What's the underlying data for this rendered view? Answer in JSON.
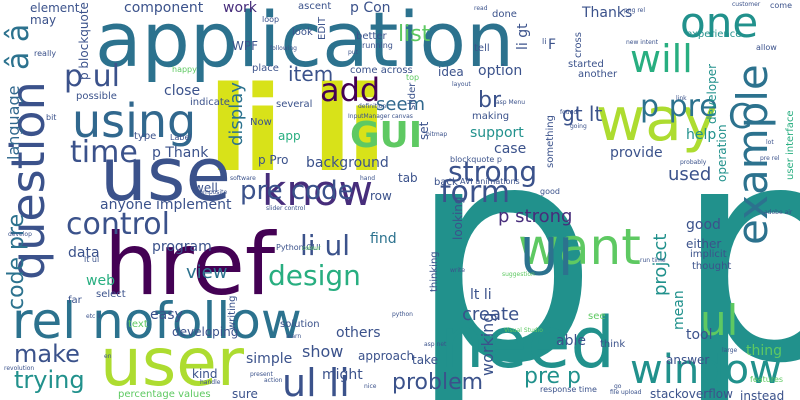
{
  "palette": {
    "dark_purple": "#440154",
    "indigo": "#472d7b",
    "slate_blue": "#3b528b",
    "steel_blue": "#2c728e",
    "teal": "#21918c",
    "sea_green": "#28ae80",
    "green": "#5ec962",
    "lime": "#addc30",
    "yellow": "#fde725"
  },
  "words": [
    {
      "text": "p p",
      "color": "#21918c"
    },
    {
      "text": "application",
      "color": "#2c728e"
    },
    {
      "text": "li li",
      "color": "#d8e219"
    },
    {
      "text": "use",
      "color": "#3b528b"
    },
    {
      "text": "href",
      "color": "#440154"
    },
    {
      "text": "need",
      "color": "#21918c"
    },
    {
      "text": "user",
      "color": "#addc30"
    },
    {
      "text": "rel nofollow",
      "color": "#2c728e"
    },
    {
      "text": "way",
      "color": "#addc30"
    },
    {
      "text": "want",
      "color": "#5ec962"
    },
    {
      "text": "question",
      "color": "#3b528b"
    },
    {
      "text": "example",
      "color": "#2c728e"
    },
    {
      "text": "using",
      "color": "#31688e"
    },
    {
      "text": "UI",
      "color": "#2c728e"
    },
    {
      "text": "know",
      "color": "#472d7b"
    },
    {
      "text": "window",
      "color": "#21918c"
    },
    {
      "text": "ul li",
      "color": "#3b528b"
    },
    {
      "text": "one",
      "color": "#21918c"
    },
    {
      "text": "will",
      "color": "#28ae80"
    },
    {
      "text": "GUI",
      "color": "#5ec962"
    },
    {
      "text": "p pre",
      "color": "#2c728e"
    },
    {
      "text": "form",
      "color": "#3b528b"
    },
    {
      "text": "control",
      "color": "#3b528b"
    },
    {
      "text": "add",
      "color": "#440154"
    },
    {
      "text": "â â",
      "color": "#2c728e"
    },
    {
      "text": "p ul",
      "color": "#3b528b"
    },
    {
      "text": "time",
      "color": "#3b528b"
    },
    {
      "text": "design",
      "color": "#28ae80"
    },
    {
      "text": "pre code",
      "color": "#3b528b"
    },
    {
      "text": "strong",
      "color": "#3b528b"
    },
    {
      "text": "li ul",
      "color": "#3b528b"
    },
    {
      "text": "code pre",
      "color": "#2c728e"
    },
    {
      "text": "language",
      "color": "#31688e"
    },
    {
      "text": "make",
      "color": "#3b528b"
    },
    {
      "text": "trying",
      "color": "#21918c"
    },
    {
      "text": "problem",
      "color": "#3b528b"
    },
    {
      "text": "C",
      "color": "#2c728e"
    },
    {
      "text": "ul",
      "color": "#5ec962"
    },
    {
      "text": "pre p",
      "color": "#21918c"
    },
    {
      "text": "p strong",
      "color": "#472d7b"
    },
    {
      "text": "item",
      "color": "#3b528b"
    },
    {
      "text": "seem",
      "color": "#31688e"
    },
    {
      "text": "display",
      "color": "#2c728e"
    },
    {
      "text": "project",
      "color": "#21918c"
    },
    {
      "text": "view",
      "color": "#2c728e"
    },
    {
      "text": "create",
      "color": "#3b528b"
    },
    {
      "text": "used",
      "color": "#3b528b"
    },
    {
      "text": "show",
      "color": "#3b528b"
    },
    {
      "text": "working",
      "color": "#3b528b"
    },
    {
      "text": "might",
      "color": "#3b528b"
    },
    {
      "text": "list",
      "color": "#5ec962"
    },
    {
      "text": "gt lt",
      "color": "#3b528b"
    },
    {
      "text": "br",
      "color": "#3b528b"
    },
    {
      "text": "option",
      "color": "#3b528b"
    },
    {
      "text": "p Thank",
      "color": "#3b528b"
    },
    {
      "text": "component",
      "color": "#3b528b"
    },
    {
      "text": "work",
      "color": "#472d7b"
    },
    {
      "text": "p Con",
      "color": "#3b528b"
    },
    {
      "text": "Thanks",
      "color": "#3b528b"
    },
    {
      "text": "help",
      "color": "#21918c"
    },
    {
      "text": "find",
      "color": "#2c728e"
    },
    {
      "text": "data",
      "color": "#3b528b"
    },
    {
      "text": "web",
      "color": "#28ae80"
    },
    {
      "text": "good",
      "color": "#3b528b"
    },
    {
      "text": "mean",
      "color": "#21918c"
    },
    {
      "text": "easy",
      "color": "#3b528b"
    },
    {
      "text": "case",
      "color": "#3b528b"
    },
    {
      "text": "support",
      "color": "#21918c"
    },
    {
      "text": "background",
      "color": "#3b528b"
    },
    {
      "text": "program",
      "color": "#3b528b"
    },
    {
      "text": "provide",
      "color": "#3b528b"
    },
    {
      "text": "simple",
      "color": "#3b528b"
    },
    {
      "text": "able",
      "color": "#3b528b"
    },
    {
      "text": "lt li",
      "color": "#3b528b"
    },
    {
      "text": "others",
      "color": "#3b528b"
    },
    {
      "text": "tool",
      "color": "#3b528b"
    },
    {
      "text": "thing",
      "color": "#5ec962"
    },
    {
      "text": "anyone",
      "color": "#3b528b"
    },
    {
      "text": "implement",
      "color": "#3b528b"
    },
    {
      "text": "element",
      "color": "#3b528b"
    },
    {
      "text": "may",
      "color": "#3b528b"
    },
    {
      "text": "WPF",
      "color": "#3b528b"
    },
    {
      "text": "close",
      "color": "#3b528b"
    },
    {
      "text": "app",
      "color": "#28ae80"
    },
    {
      "text": "p Pro",
      "color": "#3b528b"
    },
    {
      "text": "well",
      "color": "#3b528b"
    },
    {
      "text": "idea",
      "color": "#3b528b"
    },
    {
      "text": "tab",
      "color": "#3b528b"
    },
    {
      "text": "developing",
      "color": "#3b528b"
    },
    {
      "text": "either",
      "color": "#3b528b"
    },
    {
      "text": "answer",
      "color": "#3b528b"
    },
    {
      "text": "approach",
      "color": "#3b528b"
    },
    {
      "text": "take",
      "color": "#3b528b"
    },
    {
      "text": "sure",
      "color": "#3b528b"
    },
    {
      "text": "kind",
      "color": "#3b528b"
    },
    {
      "text": "instead",
      "color": "#3b528b"
    },
    {
      "text": "stackoverflow",
      "color": "#3b528b"
    },
    {
      "text": "percentage values",
      "color": "#5ec962"
    },
    {
      "text": "developer",
      "color": "#21918c"
    },
    {
      "text": "operation",
      "color": "#21918c"
    },
    {
      "text": "experience",
      "color": "#21918c"
    },
    {
      "text": "solution",
      "color": "#3b528b"
    },
    {
      "text": "select",
      "color": "#3b528b"
    },
    {
      "text": "possible",
      "color": "#3b528b"
    },
    {
      "text": "place",
      "color": "#3b528b"
    },
    {
      "text": "indicate",
      "color": "#3b528b"
    },
    {
      "text": "several",
      "color": "#3b528b"
    },
    {
      "text": "come across",
      "color": "#3b528b"
    },
    {
      "text": "making",
      "color": "#3b528b"
    },
    {
      "text": "thinking",
      "color": "#3b528b"
    },
    {
      "text": "looking",
      "color": "#3b528b"
    },
    {
      "text": "something",
      "color": "#3b528b"
    },
    {
      "text": "another",
      "color": "#3b528b"
    },
    {
      "text": "started",
      "color": "#3b528b"
    },
    {
      "text": "cross",
      "color": "#3b528b"
    },
    {
      "text": "better",
      "color": "#3b528b"
    },
    {
      "text": "running",
      "color": "#3b528b"
    },
    {
      "text": "tell",
      "color": "#3b528b"
    },
    {
      "text": "loop",
      "color": "#3b528b"
    },
    {
      "text": "ascent",
      "color": "#3b528b"
    },
    {
      "text": "EDIT",
      "color": "#3b528b"
    },
    {
      "text": "done",
      "color": "#3b528b"
    },
    {
      "text": "li gt",
      "color": "#3b528b"
    },
    {
      "text": "F",
      "color": "#3b528b"
    },
    {
      "text": "p blockquote",
      "color": "#3b528b"
    },
    {
      "text": "far",
      "color": "#3b528b"
    },
    {
      "text": "think",
      "color": "#3b528b"
    },
    {
      "text": "look",
      "color": "#3b528b"
    },
    {
      "text": "writing",
      "color": "#3b528b"
    },
    {
      "text": "type",
      "color": "#3b528b"
    },
    {
      "text": "Now",
      "color": "#3b528b"
    },
    {
      "text": "slider",
      "color": "#3b528b"
    },
    {
      "text": "set",
      "color": "#3b528b"
    },
    {
      "text": "row",
      "color": "#3b528b"
    },
    {
      "text": "back",
      "color": "#3b528b"
    },
    {
      "text": "AVI animations",
      "color": "#3b528b"
    },
    {
      "text": "good",
      "color": "#3b528b"
    },
    {
      "text": "user interface",
      "color": "#28ae80"
    },
    {
      "text": "implicit",
      "color": "#3b528b"
    },
    {
      "text": "thought",
      "color": "#3b528b"
    },
    {
      "text": "Python GUI",
      "color": "#3b528b"
    },
    {
      "text": "text",
      "color": "#5ec962"
    },
    {
      "text": "see",
      "color": "#5ec962"
    },
    {
      "text": "come",
      "color": "#3b528b"
    },
    {
      "text": "allow",
      "color": "#3b528b"
    },
    {
      "text": "really",
      "color": "#3b528b"
    },
    {
      "text": "bit",
      "color": "#3b528b"
    },
    {
      "text": "happy",
      "color": "#5ec962"
    },
    {
      "text": "Label",
      "color": "#3b528b"
    },
    {
      "text": "blockquote p",
      "color": "#3b528b"
    },
    {
      "text": "InputManager canvas",
      "color": "#3b528b"
    },
    {
      "text": "asp Menu",
      "color": "#3b528b"
    },
    {
      "text": "bitmap",
      "color": "#3b528b"
    },
    {
      "text": "definition",
      "color": "#3b528b"
    },
    {
      "text": "following",
      "color": "#3b528b"
    },
    {
      "text": "layout",
      "color": "#3b528b"
    },
    {
      "text": "top",
      "color": "#5ec962"
    },
    {
      "text": "put",
      "color": "#3b528b"
    },
    {
      "text": "read",
      "color": "#3b528b"
    },
    {
      "text": "png rel",
      "color": "#3b528b"
    },
    {
      "text": "new intent",
      "color": "#3b528b"
    },
    {
      "text": "customer",
      "color": "#3b528b"
    },
    {
      "text": "software",
      "color": "#3b528b"
    },
    {
      "text": "composite",
      "color": "#3b528b"
    },
    {
      "text": "slider control",
      "color": "#3b528b"
    },
    {
      "text": "hand",
      "color": "#3b528b"
    },
    {
      "text": "colour",
      "color": "#5ec962"
    },
    {
      "text": "write",
      "color": "#3b528b"
    },
    {
      "text": "run time",
      "color": "#3b528b"
    },
    {
      "text": "suggestion",
      "color": "#5ec962"
    },
    {
      "text": "Visual Studio",
      "color": "#5ec962"
    },
    {
      "text": "asp net",
      "color": "#3b528b"
    },
    {
      "text": "response time",
      "color": "#3b528b"
    },
    {
      "text": "file upload",
      "color": "#3b528b"
    },
    {
      "text": "present",
      "color": "#3b528b"
    },
    {
      "text": "python",
      "color": "#3b528b"
    },
    {
      "text": "learn",
      "color": "#3b528b"
    },
    {
      "text": "develop",
      "color": "#3b528b"
    },
    {
      "text": "lt ul",
      "color": "#3b528b"
    },
    {
      "text": "revolution",
      "color": "#3b528b"
    },
    {
      "text": "handle",
      "color": "#3b528b"
    },
    {
      "text": "action",
      "color": "#3b528b"
    },
    {
      "text": "features",
      "color": "#5ec962"
    },
    {
      "text": "large",
      "color": "#3b528b"
    },
    {
      "text": "adobe air",
      "color": "#3b528b"
    },
    {
      "text": "probably",
      "color": "#3b528b"
    },
    {
      "text": "pre rel",
      "color": "#3b528b"
    },
    {
      "text": "link",
      "color": "#3b528b"
    },
    {
      "text": "lot",
      "color": "#3b528b"
    },
    {
      "text": "found",
      "color": "#3b528b"
    },
    {
      "text": "going",
      "color": "#3b528b"
    },
    {
      "text": "li",
      "color": "#3b528b"
    },
    {
      "text": "go",
      "color": "#3b528b"
    },
    {
      "text": "nice",
      "color": "#3b528b"
    },
    {
      "text": "etc li",
      "color": "#3b528b"
    },
    {
      "text": "en",
      "color": "#3b528b"
    }
  ]
}
